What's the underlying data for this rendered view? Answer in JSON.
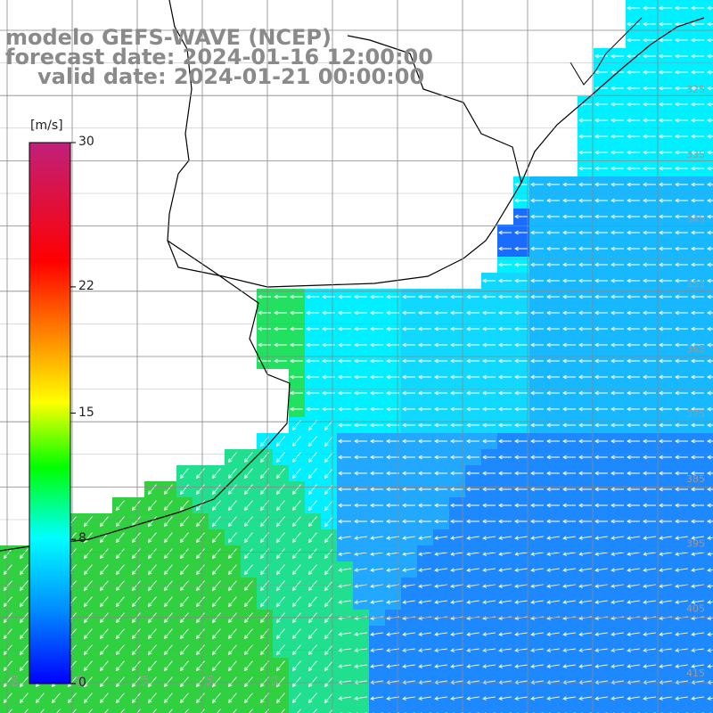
{
  "title": {
    "line1": "modelo GEFS-WAVE (NCEP)",
    "line2": "forecast date: 2024-01-16 12:00:00",
    "line3": "valid date: 2024-01-21 00:00:00"
  },
  "colorbar": {
    "unit": "[m/s]",
    "ticks": [
      {
        "value": 0,
        "label": "0"
      },
      {
        "value": 8,
        "label": "8"
      },
      {
        "value": 15,
        "label": "15"
      },
      {
        "value": 22,
        "label": "22"
      },
      {
        "value": 30,
        "label": "30"
      }
    ],
    "range": [
      0,
      30
    ],
    "colors": [
      "#0000ff",
      "#0090ff",
      "#00ffff",
      "#00ff00",
      "#ffff00",
      "#ff8000",
      "#ff0000",
      "#c0207a"
    ]
  },
  "grid": {
    "lat_labels": [
      "325",
      "335",
      "345",
      "355",
      "365",
      "375",
      "385",
      "395",
      "405",
      "415"
    ],
    "lon_labels": [
      "69",
      "60",
      "58",
      "56",
      "54"
    ]
  },
  "colors": {
    "ocean_strong": "#1a6cff",
    "ocean_mid": "#2ab0ff",
    "ocean_cyan": "#00f0ff",
    "shelf_green": "#22e060",
    "land": "#ffffff",
    "coastline": "#000000",
    "gridline": "#888888",
    "arrow": "#ffffff"
  }
}
